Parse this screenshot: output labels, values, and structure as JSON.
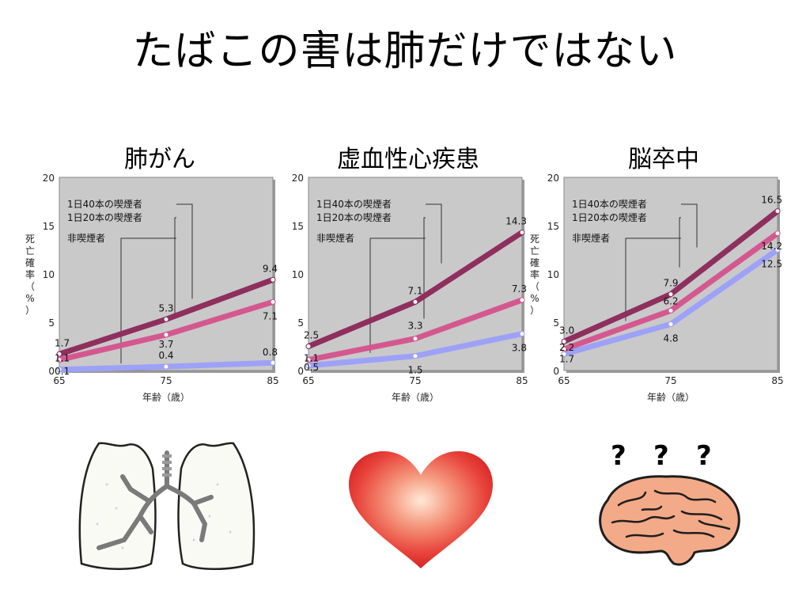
{
  "slide": {
    "title": "たばこの害は肺だけではない"
  },
  "colors": {
    "heavy": "#8e2f5e",
    "moderate": "#d4588f",
    "non": "#9da1f7",
    "plot_bg": "#c9c9c9"
  },
  "chart_data": [
    {
      "type": "line",
      "title": "肺がん",
      "x": [
        65,
        75,
        85
      ],
      "xlabel": "年齢（歳）",
      "ylabel": "死亡確率（%）",
      "ylim": [
        0,
        20
      ],
      "yticks": [
        0,
        5,
        10,
        15,
        20
      ],
      "grid": false,
      "series": [
        {
          "name": "1日40本の喫煙者",
          "values": [
            1.7,
            5.3,
            9.4
          ],
          "labels": [
            "1.7",
            "5.3",
            "9.4"
          ]
        },
        {
          "name": "1日20本の喫煙者",
          "values": [
            1.1,
            3.7,
            7.1
          ],
          "labels": [
            "1.1",
            "3.7",
            "7.1"
          ]
        },
        {
          "name": "非喫煙者",
          "values": [
            0.1,
            0.4,
            0.8
          ],
          "labels": [
            "0.1",
            "0.4",
            "0.8"
          ]
        }
      ]
    },
    {
      "type": "line",
      "title": "虚血性心疾患",
      "x": [
        65,
        75,
        85
      ],
      "xlabel": "年齢（歳）",
      "ylabel": "",
      "ylim": [
        0,
        20
      ],
      "yticks": [
        0,
        5,
        10,
        15,
        20
      ],
      "grid": false,
      "series": [
        {
          "name": "1日40本の喫煙者",
          "values": [
            2.5,
            7.1,
            14.3
          ],
          "labels": [
            "2.5",
            "7.1",
            "14.3"
          ]
        },
        {
          "name": "1日20本の喫煙者",
          "values": [
            1.1,
            3.3,
            7.3
          ],
          "labels": [
            "1.1",
            "3.3",
            "7.3"
          ]
        },
        {
          "name": "非喫煙者",
          "values": [
            0.5,
            1.5,
            3.8
          ],
          "labels": [
            "0.5",
            "1.5",
            "3.8"
          ]
        }
      ]
    },
    {
      "type": "line",
      "title": "脳卒中",
      "x": [
        65,
        75,
        85
      ],
      "xlabel": "年齢（歳）",
      "ylabel": "死亡確率（%）",
      "ylim": [
        0,
        20
      ],
      "yticks": [
        0,
        5,
        10,
        15,
        20
      ],
      "grid": false,
      "series": [
        {
          "name": "1日40本の喫煙者",
          "values": [
            3.0,
            7.9,
            16.5
          ],
          "labels": [
            "3.0",
            "7.9",
            "16.5"
          ]
        },
        {
          "name": "1日20本の喫煙者",
          "values": [
            2.2,
            6.2,
            14.2
          ],
          "labels": [
            "2.2",
            "6.2",
            "14.2"
          ]
        },
        {
          "name": "非喫煙者",
          "values": [
            1.7,
            4.8,
            12.5
          ],
          "labels": [
            "1.7",
            "4.8",
            "12.5"
          ]
        }
      ]
    }
  ],
  "illustrations": {
    "brain_marks": [
      "?",
      "?",
      "?"
    ]
  }
}
